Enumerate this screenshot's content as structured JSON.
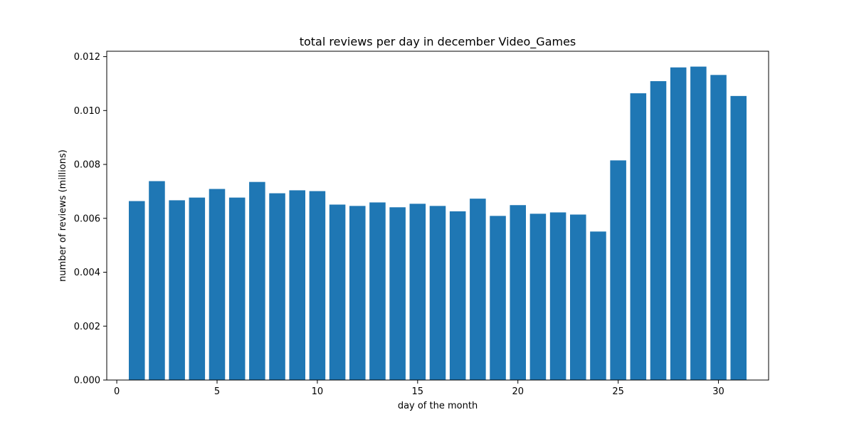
{
  "chart_data": {
    "type": "bar",
    "title": "total reviews per day in december Video_Games",
    "xlabel": "day of the month",
    "ylabel": "number of reviews (millions)",
    "x": [
      1,
      2,
      3,
      4,
      5,
      6,
      7,
      8,
      9,
      10,
      11,
      12,
      13,
      14,
      15,
      16,
      17,
      18,
      19,
      20,
      21,
      22,
      23,
      24,
      25,
      26,
      27,
      28,
      29,
      30,
      31
    ],
    "values": [
      0.00664,
      0.00738,
      0.00667,
      0.00677,
      0.00709,
      0.00677,
      0.00735,
      0.00693,
      0.00704,
      0.00701,
      0.00651,
      0.00646,
      0.00659,
      0.00641,
      0.00654,
      0.00646,
      0.00626,
      0.00673,
      0.00609,
      0.00649,
      0.00617,
      0.00622,
      0.00614,
      0.00551,
      0.00815,
      0.01064,
      0.01109,
      0.0116,
      0.01163,
      0.01132,
      0.01054
    ],
    "xlim": [
      -0.5,
      32.5
    ],
    "ylim": [
      0,
      0.0122
    ],
    "xticks": [
      "0",
      "5",
      "10",
      "15",
      "20",
      "25",
      "30"
    ],
    "yticks": [
      "0.000",
      "0.002",
      "0.004",
      "0.006",
      "0.008",
      "0.010",
      "0.012"
    ],
    "bar_color": "#1f77b4",
    "grid": false,
    "legend": "none"
  }
}
